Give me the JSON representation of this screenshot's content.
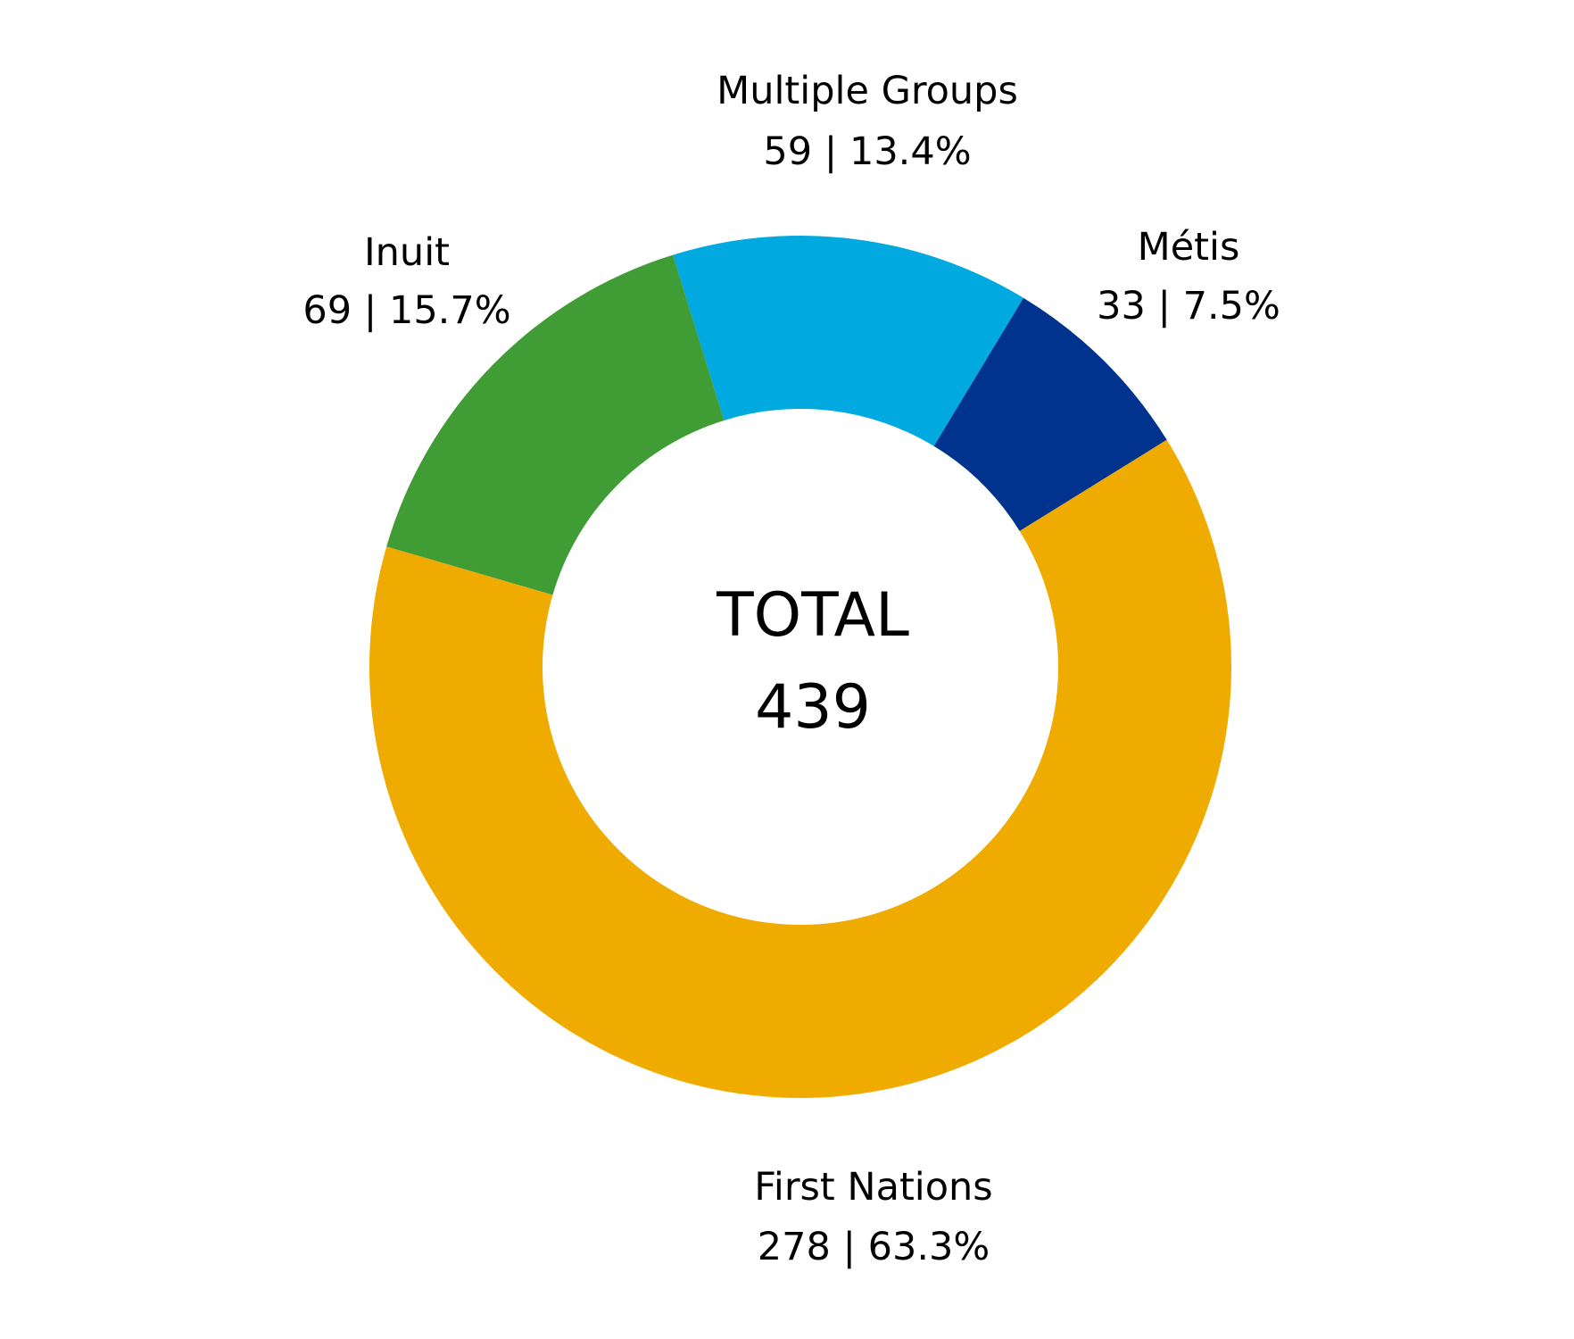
{
  "chart_data": {
    "type": "pie",
    "style": "donut",
    "center_label": {
      "title": "TOTAL",
      "value": "439"
    },
    "slices": [
      {
        "label": "First Nations",
        "value": 278,
        "percent": 63.3,
        "text": "278 | 63.3%",
        "color": "#EFAB00"
      },
      {
        "label": "Métis",
        "value": 33,
        "percent": 7.5,
        "text": "33 | 7.5%",
        "color": "#00338D"
      },
      {
        "label": "Multiple Groups",
        "value": 59,
        "percent": 13.4,
        "text": "59 | 13.4%",
        "color": "#00A9E0"
      },
      {
        "label": "Inuit",
        "value": 69,
        "percent": 15.7,
        "text": "69 | 15.7%",
        "color": "#409C35"
      }
    ],
    "direction": "counterclockwise",
    "start_angle_deg": 163.8
  }
}
